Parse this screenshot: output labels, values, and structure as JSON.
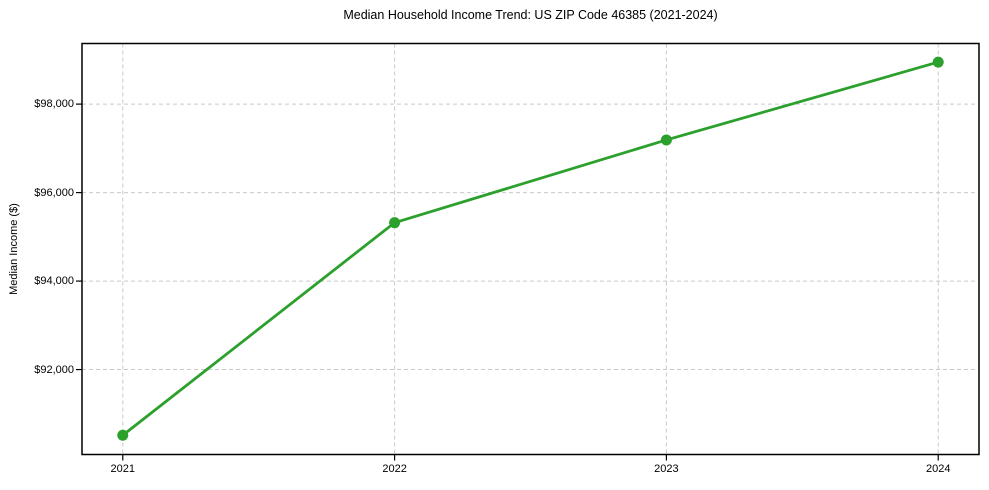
{
  "chart_data": {
    "type": "line",
    "title": "Median Household Income Trend: US ZIP Code 46385 (2021-2024)",
    "ylabel": "Median Income ($)",
    "xlabel": "",
    "x": [
      2021,
      2022,
      2023,
      2024
    ],
    "x_labels": [
      "2021",
      "2022",
      "2023",
      "2024"
    ],
    "series": [
      {
        "name": "Median Household Income",
        "values": [
          90515,
          95320,
          97190,
          98950
        ]
      }
    ],
    "yticks": [
      {
        "value": 92000,
        "label": "$92,000"
      },
      {
        "value": 94000,
        "label": "$94,000"
      },
      {
        "value": 96000,
        "label": "$96,000"
      },
      {
        "value": 98000,
        "label": "$98,000"
      }
    ],
    "ylim": [
      90080,
      99370
    ],
    "xlim": [
      2020.85,
      2024.15
    ],
    "grid": true,
    "grid_style": "dashed",
    "legend": false,
    "marker": "circle",
    "colors": {
      "line": "#2ca02c",
      "grid": "#c9c9c9",
      "frame": "#000000",
      "text": "#000000",
      "background": "#ffffff"
    }
  }
}
